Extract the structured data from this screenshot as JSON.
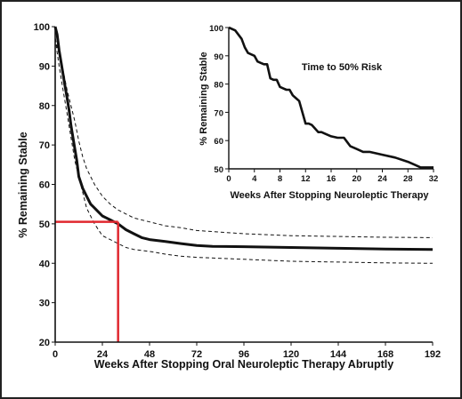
{
  "chart_data": [
    {
      "type": "line",
      "title": "",
      "xlabel": "Weeks After Stopping Oral Neuroleptic Therapy Abruptly",
      "ylabel": "% Remaining Stable",
      "xlim": [
        0,
        192
      ],
      "ylim": [
        20,
        100
      ],
      "xticks": [
        0,
        24,
        48,
        72,
        96,
        120,
        144,
        168,
        192
      ],
      "yticks": [
        20,
        30,
        40,
        50,
        60,
        70,
        80,
        90,
        100
      ],
      "grid": false,
      "series": [
        {
          "style": "solid",
          "x": [
            0,
            1,
            2,
            3,
            4,
            5,
            6,
            7,
            8,
            9,
            10,
            11,
            12,
            14,
            16,
            18,
            20,
            22,
            24,
            26,
            28,
            30,
            32,
            36,
            40,
            44,
            48,
            56,
            64,
            72,
            80,
            96,
            120,
            144,
            168,
            192
          ],
          "y": [
            100,
            98,
            94,
            91,
            88,
            85,
            82,
            79,
            75,
            72,
            69,
            66,
            62,
            59,
            57,
            55,
            54,
            53,
            52,
            51.5,
            51,
            50.5,
            50,
            48.5,
            47.5,
            46.5,
            46,
            45.5,
            45,
            44.5,
            44.3,
            44.2,
            44,
            43.8,
            43.6,
            43.5
          ]
        },
        {
          "style": "dashed",
          "x": [
            0,
            2,
            4,
            6,
            8,
            10,
            12,
            14,
            16,
            20,
            24,
            28,
            32,
            36,
            40,
            48,
            56,
            64,
            72,
            96,
            120,
            144,
            168,
            192
          ],
          "y": [
            97,
            93,
            89,
            84,
            80,
            76,
            71,
            67,
            64,
            60,
            57,
            55,
            53.5,
            52.5,
            51.5,
            50.5,
            49.5,
            49,
            48.3,
            47.5,
            47,
            46.8,
            46.6,
            46.5
          ]
        },
        {
          "style": "dashed",
          "x": [
            0,
            2,
            4,
            6,
            8,
            10,
            12,
            14,
            16,
            20,
            24,
            28,
            32,
            36,
            40,
            48,
            56,
            64,
            72,
            96,
            120,
            144,
            168,
            192
          ],
          "y": [
            97,
            90,
            84,
            78,
            72,
            66,
            62,
            58,
            54,
            50,
            47,
            46,
            45,
            44,
            43.5,
            43,
            42.3,
            41.8,
            41.5,
            41,
            40.5,
            40.3,
            40.1,
            40
          ]
        }
      ],
      "reference_lines": [
        {
          "color": "#e0282f",
          "from": [
            0,
            50.5
          ],
          "to": [
            32,
            50.5
          ]
        },
        {
          "color": "#e0282f",
          "from": [
            32,
            50.5
          ],
          "to": [
            32,
            20
          ]
        }
      ]
    },
    {
      "type": "line",
      "title": "Time to 50% Risk",
      "xlabel": "Weeks After Stopping Neuroleptic Therapy",
      "ylabel": "% Remaining Stable",
      "xlim": [
        0,
        32
      ],
      "ylim": [
        50,
        100
      ],
      "xticks": [
        0,
        4,
        8,
        12,
        16,
        20,
        24,
        28,
        32
      ],
      "yticks": [
        50,
        60,
        70,
        80,
        90,
        100
      ],
      "grid": false,
      "series": [
        {
          "style": "solid",
          "x": [
            0,
            1,
            2,
            2.5,
            3,
            4,
            4.5,
            5,
            5.5,
            6,
            6.5,
            7,
            7.5,
            8,
            8.5,
            9,
            9.5,
            10,
            10.5,
            11,
            11.5,
            12,
            12.5,
            13,
            14,
            14.5,
            15,
            16,
            17,
            18,
            18.5,
            19,
            20,
            21,
            22,
            23,
            24,
            26,
            28,
            29,
            30,
            32
          ],
          "y": [
            100,
            99,
            96,
            93,
            91,
            90,
            88,
            87.5,
            87,
            87,
            82,
            81.5,
            81.5,
            79,
            78.5,
            78,
            78,
            76,
            75,
            74,
            70,
            66,
            66,
            65.5,
            63,
            63,
            62.5,
            61.5,
            61,
            61,
            59.5,
            58,
            57,
            56,
            56,
            55.5,
            55,
            54,
            52.5,
            51.5,
            50.5,
            50.5
          ]
        }
      ]
    }
  ]
}
